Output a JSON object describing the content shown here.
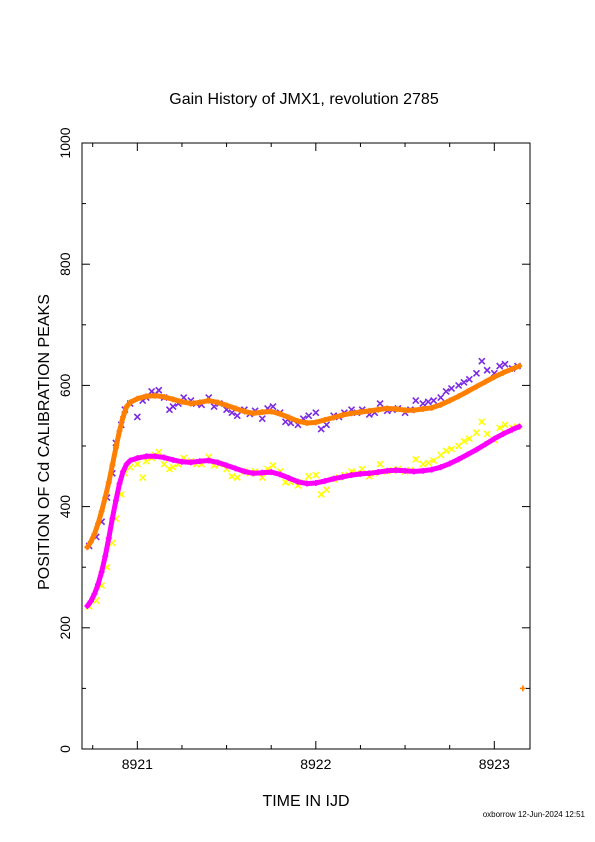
{
  "chart_data": {
    "type": "scatter",
    "title": "Gain History of JMX1, revolution 2785",
    "xlabel": "TIME IN IJD",
    "ylabel": "POSITION OF Cd CALIBRATION PEAKS",
    "xlim": [
      8920.69,
      8923.2
    ],
    "ylim": [
      0,
      1000
    ],
    "x_ticks": [
      8921,
      8922,
      8923
    ],
    "x_tick_labels": [
      "8921",
      "8922",
      "8923"
    ],
    "y_ticks": [
      0,
      200,
      400,
      600,
      800,
      1000
    ],
    "y_tick_labels": [
      "0",
      "200",
      "400",
      "600",
      "800",
      "1000"
    ],
    "grid": false,
    "legend": "none",
    "footer": "oxborrow 12-Jun-2024 12:51",
    "series": [
      {
        "marker": "x",
        "color": "#7b2be2",
        "x": [
          8920.73,
          8920.77,
          8920.8,
          8920.83,
          8920.86,
          8920.88,
          8920.91,
          8920.93,
          8920.96,
          8921.0,
          8921.03,
          8921.05,
          8921.08,
          8921.1,
          8921.12,
          8921.15,
          8921.18,
          8921.2,
          8921.23,
          8921.26,
          8921.3,
          8921.33,
          8921.36,
          8921.4,
          8921.43,
          8921.46,
          8921.5,
          8921.53,
          8921.56,
          8921.6,
          8921.63,
          8921.66,
          8921.7,
          8921.73,
          8921.76,
          8921.8,
          8921.83,
          8921.86,
          8921.9,
          8921.93,
          8921.96,
          8922.0,
          8922.03,
          8922.06,
          8922.1,
          8922.13,
          8922.16,
          8922.2,
          8922.23,
          8922.26,
          8922.3,
          8922.33,
          8922.36,
          8922.4,
          8922.43,
          8922.46,
          8922.5,
          8922.53,
          8922.56,
          8922.6,
          8922.63,
          8922.66,
          8922.7,
          8922.73,
          8922.76,
          8922.8,
          8922.83,
          8922.86,
          8922.9,
          8922.93,
          8922.96,
          8923.0,
          8923.03,
          8923.06,
          8923.1,
          8923.13
        ],
        "y": [
          335,
          350,
          375,
          415,
          455,
          505,
          535,
          560,
          570,
          548,
          575,
          580,
          590,
          585,
          592,
          580,
          560,
          565,
          570,
          580,
          575,
          570,
          568,
          580,
          565,
          570,
          560,
          555,
          550,
          560,
          553,
          558,
          545,
          562,
          565,
          555,
          540,
          538,
          535,
          545,
          550,
          555,
          528,
          535,
          550,
          548,
          555,
          560,
          555,
          560,
          552,
          555,
          570,
          558,
          560,
          562,
          555,
          560,
          575,
          570,
          573,
          575,
          580,
          590,
          595,
          600,
          605,
          610,
          620,
          640,
          625,
          620,
          632,
          635,
          628,
          632
        ]
      },
      {
        "marker": "x",
        "color": "#ffff00",
        "x": [
          8920.73,
          8920.77,
          8920.8,
          8920.83,
          8920.86,
          8920.88,
          8920.91,
          8920.93,
          8920.96,
          8921.0,
          8921.03,
          8921.05,
          8921.08,
          8921.1,
          8921.12,
          8921.15,
          8921.18,
          8921.2,
          8921.23,
          8921.26,
          8921.3,
          8921.33,
          8921.36,
          8921.4,
          8921.43,
          8921.46,
          8921.5,
          8921.53,
          8921.56,
          8921.6,
          8921.63,
          8921.66,
          8921.7,
          8921.73,
          8921.76,
          8921.8,
          8921.83,
          8921.86,
          8921.9,
          8921.93,
          8921.96,
          8922.0,
          8922.03,
          8922.06,
          8922.1,
          8922.13,
          8922.16,
          8922.2,
          8922.23,
          8922.26,
          8922.3,
          8922.33,
          8922.36,
          8922.4,
          8922.43,
          8922.46,
          8922.5,
          8922.53,
          8922.56,
          8922.6,
          8922.63,
          8922.66,
          8922.7,
          8922.73,
          8922.76,
          8922.8,
          8922.83,
          8922.86,
          8922.9,
          8922.93,
          8922.96,
          8923.0,
          8923.03,
          8923.06,
          8923.1,
          8923.13
        ],
        "y": [
          235,
          245,
          270,
          300,
          340,
          380,
          420,
          455,
          465,
          470,
          448,
          475,
          480,
          485,
          490,
          470,
          462,
          465,
          470,
          480,
          475,
          470,
          470,
          482,
          468,
          470,
          462,
          450,
          448,
          458,
          455,
          458,
          448,
          462,
          468,
          458,
          440,
          440,
          435,
          440,
          450,
          452,
          420,
          428,
          445,
          448,
          452,
          458,
          455,
          462,
          450,
          455,
          470,
          458,
          460,
          462,
          458,
          460,
          478,
          470,
          472,
          476,
          485,
          492,
          495,
          500,
          508,
          512,
          522,
          540,
          520,
          510,
          530,
          535,
          530,
          532
        ]
      },
      {
        "marker": "+",
        "color": "#ff7f00",
        "x": [
          8920.72,
          8920.74,
          8920.76,
          8920.78,
          8920.8,
          8920.82,
          8920.84,
          8920.86,
          8920.88,
          8920.9,
          8920.92,
          8920.94,
          8920.96,
          8921.0,
          8921.05,
          8921.1,
          8921.15,
          8921.2,
          8921.25,
          8921.3,
          8921.35,
          8921.4,
          8921.45,
          8921.5,
          8921.55,
          8921.6,
          8921.65,
          8921.7,
          8921.75,
          8921.8,
          8921.85,
          8921.9,
          8921.95,
          8922.0,
          8922.05,
          8922.1,
          8922.15,
          8922.2,
          8922.25,
          8922.3,
          8922.35,
          8922.4,
          8922.45,
          8922.5,
          8922.55,
          8922.6,
          8922.65,
          8922.7,
          8922.75,
          8922.8,
          8922.85,
          8922.9,
          8922.95,
          8923.0,
          8923.05,
          8923.1,
          8923.14,
          8923.16
        ],
        "y": [
          333,
          342,
          355,
          372,
          392,
          415,
          440,
          468,
          497,
          525,
          548,
          565,
          572,
          578,
          582,
          583,
          581,
          577,
          573,
          570,
          572,
          575,
          572,
          567,
          562,
          557,
          554,
          556,
          557,
          553,
          547,
          541,
          538,
          539,
          543,
          547,
          551,
          554,
          556,
          558,
          560,
          562,
          561,
          559,
          559,
          561,
          563,
          568,
          575,
          582,
          590,
          598,
          606,
          614,
          621,
          627,
          632,
          100
        ]
      },
      {
        "marker": "+",
        "color": "#ff00ff",
        "x": [
          8920.72,
          8920.74,
          8920.76,
          8920.78,
          8920.8,
          8920.82,
          8920.84,
          8920.86,
          8920.88,
          8920.9,
          8920.92,
          8920.94,
          8920.96,
          8921.0,
          8921.05,
          8921.1,
          8921.15,
          8921.2,
          8921.25,
          8921.3,
          8921.35,
          8921.4,
          8921.45,
          8921.5,
          8921.55,
          8921.6,
          8921.65,
          8921.7,
          8921.75,
          8921.8,
          8921.85,
          8921.9,
          8921.95,
          8922.0,
          8922.05,
          8922.1,
          8922.15,
          8922.2,
          8922.25,
          8922.3,
          8922.35,
          8922.4,
          8922.45,
          8922.5,
          8922.55,
          8922.6,
          8922.65,
          8922.7,
          8922.75,
          8922.8,
          8922.85,
          8922.9,
          8922.95,
          8923.0,
          8923.05,
          8923.1,
          8923.14
        ],
        "y": [
          236,
          244,
          256,
          272,
          292,
          318,
          348,
          380,
          410,
          438,
          458,
          470,
          476,
          480,
          483,
          483,
          481,
          477,
          474,
          473,
          475,
          476,
          473,
          468,
          463,
          458,
          455,
          456,
          457,
          453,
          447,
          441,
          438,
          439,
          442,
          446,
          449,
          452,
          454,
          455,
          457,
          459,
          460,
          459,
          458,
          459,
          461,
          465,
          471,
          478,
          486,
          494,
          503,
          512,
          520,
          527,
          532
        ]
      }
    ]
  }
}
